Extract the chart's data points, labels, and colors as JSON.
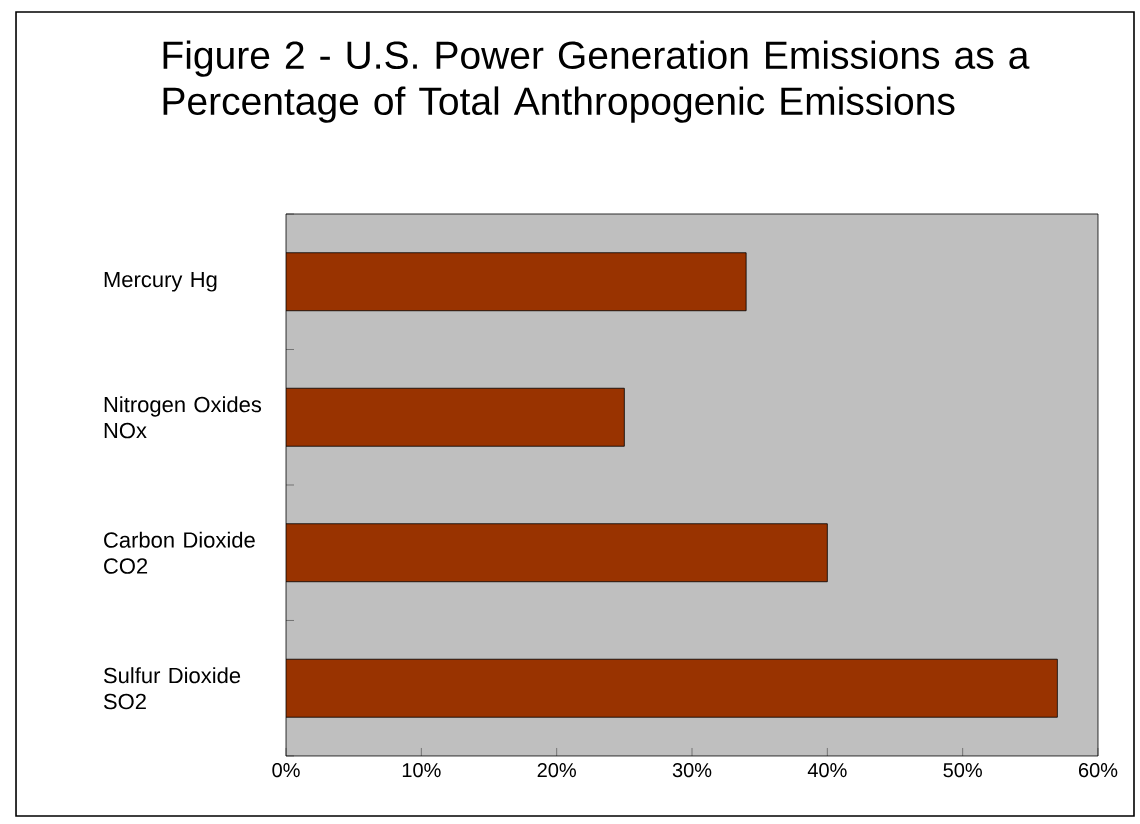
{
  "chart_data": {
    "type": "bar",
    "orientation": "horizontal",
    "title": "Figure 2 - U.S. Power Generation Emissions as a Percentage of Total Anthropogenic Emissions",
    "categories": [
      "Mercury Hg",
      "Nitrogen Oxides NOx",
      "Carbon Dioxide CO2",
      "Sulfur Dioxide SO2"
    ],
    "values": [
      34,
      25,
      40,
      57
    ],
    "color": "#993300",
    "xlim": [
      0,
      60
    ],
    "xticks": [
      {
        "value": 0,
        "label": "0%"
      },
      {
        "value": 10,
        "label": "10%"
      },
      {
        "value": 20,
        "label": "20%"
      },
      {
        "value": 30,
        "label": "30%"
      },
      {
        "value": 40,
        "label": "40%"
      },
      {
        "value": 50,
        "label": "50%"
      },
      {
        "value": 60,
        "label": "60%"
      }
    ],
    "grid": false
  }
}
